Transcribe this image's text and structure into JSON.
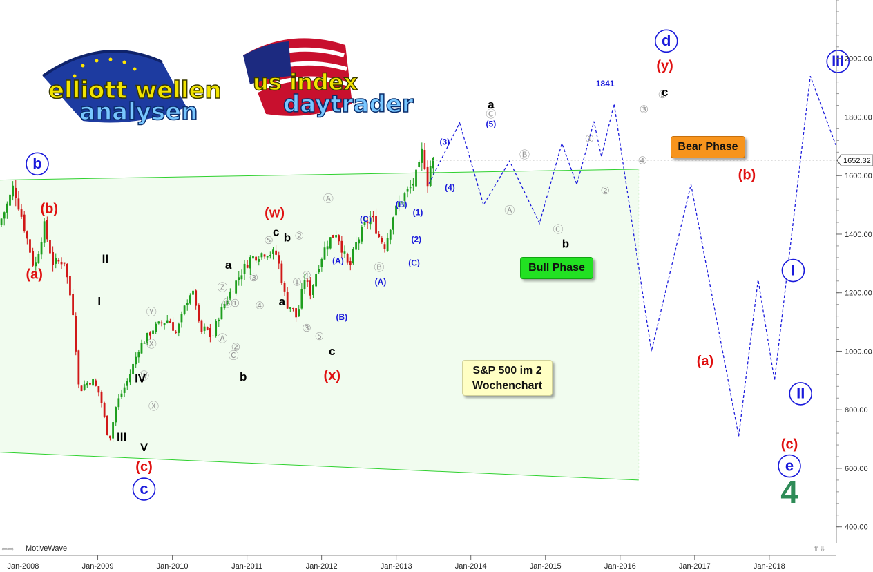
{
  "app": {
    "brand": "MotiveWave",
    "logos": [
      "elliott wellen analysen",
      "us index daytrader"
    ]
  },
  "notes": {
    "bear": "Bear Phase",
    "bull": "Bull Phase",
    "title_line1": "S&P 500 im 2",
    "title_line2": "Wochenchart",
    "level_1841": "1841"
  },
  "colors": {
    "blue_wave": "#1a1adb",
    "red_wave": "#e01010",
    "black_wave": "#000000",
    "gray_wave": "#9a9a9a",
    "green_wave": "#2e8b57",
    "candle_up": "#1e9e1e",
    "candle_down": "#d01818",
    "channel_fill": "#f1fcef",
    "channel_line": "#2fd12f",
    "bear_box": "#f7941d",
    "bull_box": "#22e122",
    "note_box": "#ffffc4"
  },
  "chart_data": {
    "type": "line",
    "title": "S&P 500 im 2 Wochenchart",
    "xlabel": "",
    "ylabel": "",
    "x_ticks": [
      "Jan-2008",
      "Jan-2009",
      "Jan-2010",
      "Jan-2011",
      "Jan-2012",
      "Jan-2013",
      "Jan-2014",
      "Jan-2015",
      "Jan-2016",
      "Jan-2017",
      "Jan-2018"
    ],
    "y_ticks": [
      "400.00",
      "600.00",
      "800.00",
      "1000.00",
      "1200.00",
      "1400.00",
      "1600.00",
      "1800.00",
      "2000.00"
    ],
    "ylim": [
      345,
      2200
    ],
    "xlim": [
      2007.72,
      2018.92
    ],
    "last_price": "1652.32",
    "grid": false,
    "price_anchors": [
      [
        2007.72,
        1430
      ],
      [
        2007.85,
        1510
      ],
      [
        2007.92,
        1565
      ],
      [
        2008.05,
        1440
      ],
      [
        2008.2,
        1280
      ],
      [
        2008.33,
        1430
      ],
      [
        2008.45,
        1300
      ],
      [
        2008.6,
        1310
      ],
      [
        2008.72,
        1130
      ],
      [
        2008.8,
        860
      ],
      [
        2008.88,
        890
      ],
      [
        2008.98,
        900
      ],
      [
        2009.08,
        850
      ],
      [
        2009.2,
        690
      ],
      [
        2009.3,
        820
      ],
      [
        2009.45,
        900
      ],
      [
        2009.6,
        1010
      ],
      [
        2009.8,
        1080
      ],
      [
        2010.0,
        1110
      ],
      [
        2010.1,
        1060
      ],
      [
        2010.28,
        1200
      ],
      [
        2010.35,
        1190
      ],
      [
        2010.42,
        1060
      ],
      [
        2010.5,
        1080
      ],
      [
        2010.58,
        1040
      ],
      [
        2010.65,
        1110
      ],
      [
        2010.8,
        1190
      ],
      [
        2010.95,
        1260
      ],
      [
        2011.1,
        1320
      ],
      [
        2011.3,
        1340
      ],
      [
        2011.45,
        1330
      ],
      [
        2011.58,
        1160
      ],
      [
        2011.65,
        1150
      ],
      [
        2011.72,
        1110
      ],
      [
        2011.82,
        1250
      ],
      [
        2011.9,
        1200
      ],
      [
        2012.0,
        1290
      ],
      [
        2012.12,
        1370
      ],
      [
        2012.25,
        1410
      ],
      [
        2012.35,
        1330
      ],
      [
        2012.42,
        1280
      ],
      [
        2012.5,
        1360
      ],
      [
        2012.65,
        1440
      ],
      [
        2012.72,
        1460
      ],
      [
        2012.82,
        1390
      ],
      [
        2012.9,
        1360
      ],
      [
        2013.0,
        1460
      ],
      [
        2013.12,
        1520
      ],
      [
        2013.25,
        1560
      ],
      [
        2013.35,
        1620
      ],
      [
        2013.4,
        1690
      ],
      [
        2013.47,
        1580
      ],
      [
        2013.52,
        1650
      ]
    ],
    "projection_blue": [
      [
        2013.47,
        1573
      ],
      [
        2013.88,
        1780
      ],
      [
        2014.2,
        1500
      ],
      [
        2014.55,
        1650
      ],
      [
        2014.95,
        1437
      ],
      [
        2015.25,
        1710
      ],
      [
        2015.45,
        1570
      ],
      [
        2015.68,
        1785
      ],
      [
        2015.78,
        1665
      ],
      [
        2015.95,
        1845
      ],
      [
        2016.45,
        1000
      ],
      [
        2016.98,
        1570
      ],
      [
        2017.62,
        710
      ],
      [
        2017.88,
        1245
      ],
      [
        2018.1,
        900
      ],
      [
        2018.58,
        1940
      ],
      [
        2018.92,
        1705
      ]
    ],
    "channel": {
      "upper": [
        [
          2007.72,
          1585
        ],
        [
          2016.28,
          1622
        ]
      ],
      "lower": [
        [
          2007.72,
          655
        ],
        [
          2016.28,
          560
        ]
      ],
      "fill_bottom": [
        [
          2007.72,
          655
        ],
        [
          2016.28,
          560
        ]
      ]
    },
    "labels": [
      {
        "text": "b",
        "x": 2008.22,
        "y": 1640,
        "color": "blue",
        "style": "circle"
      },
      {
        "text": "(b)",
        "x": 2008.38,
        "y": 1484,
        "color": "red",
        "style": "plain"
      },
      {
        "text": "(a)",
        "x": 2008.18,
        "y": 1260,
        "color": "red",
        "style": "plain"
      },
      {
        "text": "II",
        "x": 2009.13,
        "y": 1314,
        "color": "black",
        "style": "plain"
      },
      {
        "text": "I",
        "x": 2009.05,
        "y": 1169,
        "color": "black",
        "style": "plain"
      },
      {
        "text": "IV",
        "x": 2009.6,
        "y": 904,
        "color": "black",
        "style": "plain"
      },
      {
        "text": "III",
        "x": 2009.35,
        "y": 705,
        "color": "black",
        "style": "plain"
      },
      {
        "text": "V",
        "x": 2009.65,
        "y": 670,
        "color": "black",
        "style": "plain"
      },
      {
        "text": "(c)",
        "x": 2009.65,
        "y": 603,
        "color": "red",
        "style": "plain"
      },
      {
        "text": "c",
        "x": 2009.65,
        "y": 529,
        "color": "blue",
        "style": "circle"
      },
      {
        "text": "(w)",
        "x": 2011.4,
        "y": 1470,
        "color": "red",
        "style": "plain"
      },
      {
        "text": "c",
        "x": 2011.42,
        "y": 1405,
        "color": "black",
        "style": "plain"
      },
      {
        "text": "b",
        "x": 2011.57,
        "y": 1386,
        "color": "black",
        "style": "plain"
      },
      {
        "text": "a",
        "x": 2010.78,
        "y": 1293,
        "color": "black",
        "style": "plain"
      },
      {
        "text": "a",
        "x": 2011.5,
        "y": 1167,
        "color": "black",
        "style": "plain"
      },
      {
        "text": "b",
        "x": 2010.98,
        "y": 910,
        "color": "black",
        "style": "plain"
      },
      {
        "text": "c",
        "x": 2012.17,
        "y": 998,
        "color": "black",
        "style": "plain"
      },
      {
        "text": "(x)",
        "x": 2012.17,
        "y": 915,
        "color": "red",
        "style": "plain"
      },
      {
        "text": "(A)",
        "x": 2012.25,
        "y": 1307,
        "color": "blue",
        "style": "plain"
      },
      {
        "text": "(B)",
        "x": 2012.3,
        "y": 1115,
        "color": "blue",
        "style": "plain"
      },
      {
        "text": "(C)",
        "x": 2012.62,
        "y": 1450,
        "color": "blue",
        "style": "plain"
      },
      {
        "text": "(A)",
        "x": 2012.82,
        "y": 1235,
        "color": "blue",
        "style": "plain"
      },
      {
        "text": "(B)",
        "x": 2013.1,
        "y": 1500,
        "color": "blue",
        "style": "plain"
      },
      {
        "text": "(1)",
        "x": 2013.32,
        "y": 1472,
        "color": "blue",
        "style": "plain"
      },
      {
        "text": "(2)",
        "x": 2013.3,
        "y": 1380,
        "color": "blue",
        "style": "plain"
      },
      {
        "text": "(C)",
        "x": 2013.27,
        "y": 1300,
        "color": "blue",
        "style": "plain"
      },
      {
        "text": "(3)",
        "x": 2013.68,
        "y": 1713,
        "color": "blue",
        "style": "plain"
      },
      {
        "text": "(4)",
        "x": 2013.75,
        "y": 1557,
        "color": "blue",
        "style": "plain"
      },
      {
        "text": "a",
        "x": 2014.3,
        "y": 1840,
        "color": "black",
        "style": "plain"
      },
      {
        "text": "(5)",
        "x": 2014.3,
        "y": 1774,
        "color": "blue",
        "style": "plain"
      },
      {
        "text": "b",
        "x": 2015.3,
        "y": 1365,
        "color": "black",
        "style": "plain"
      },
      {
        "text": "1841",
        "x": 2015.83,
        "y": 1913,
        "color": "blue",
        "style": "plain"
      },
      {
        "text": "d",
        "x": 2016.65,
        "y": 2060,
        "color": "blue",
        "style": "circle"
      },
      {
        "text": "(y)",
        "x": 2016.63,
        "y": 1973,
        "color": "red",
        "style": "plain"
      },
      {
        "text": "c",
        "x": 2016.63,
        "y": 1883,
        "color": "black",
        "style": "plain"
      },
      {
        "text": "(b)",
        "x": 2017.73,
        "y": 1600,
        "color": "red",
        "style": "plain"
      },
      {
        "text": "(a)",
        "x": 2017.17,
        "y": 964,
        "color": "red",
        "style": "plain"
      },
      {
        "text": "I",
        "x": 2018.35,
        "y": 1276,
        "color": "blue",
        "style": "circle"
      },
      {
        "text": "II",
        "x": 2018.45,
        "y": 855,
        "color": "blue",
        "style": "circle"
      },
      {
        "text": "III",
        "x": 2018.95,
        "y": 1990,
        "color": "blue",
        "style": "circle"
      },
      {
        "text": "(c)",
        "x": 2018.3,
        "y": 680,
        "color": "red",
        "style": "plain"
      },
      {
        "text": "e",
        "x": 2018.3,
        "y": 608,
        "color": "blue",
        "style": "circle"
      },
      {
        "text": "4",
        "x": 2018.3,
        "y": 510,
        "color": "green",
        "style": "big"
      }
    ],
    "gray_markers": [
      {
        "t": "Ⓩ",
        "x": 2010.7,
        "y": 1217
      },
      {
        "t": "Ⓑ",
        "x": 2010.77,
        "y": 1163
      },
      {
        "t": "①",
        "x": 2010.87,
        "y": 1163
      },
      {
        "t": "Ⓨ",
        "x": 2009.75,
        "y": 1133
      },
      {
        "t": "Ⓐ",
        "x": 2010.7,
        "y": 1042
      },
      {
        "t": "②",
        "x": 2010.88,
        "y": 1013
      },
      {
        "t": "Ⓒ",
        "x": 2010.85,
        "y": 985
      },
      {
        "t": "Ⓧ",
        "x": 2009.75,
        "y": 1023
      },
      {
        "t": "Ⓦ",
        "x": 2009.65,
        "y": 915
      },
      {
        "t": "Ⓧ",
        "x": 2009.78,
        "y": 811
      },
      {
        "t": "③",
        "x": 2011.12,
        "y": 1250
      },
      {
        "t": "④",
        "x": 2011.2,
        "y": 1155
      },
      {
        "t": "⑤",
        "x": 2011.32,
        "y": 1377
      },
      {
        "t": "②",
        "x": 2011.73,
        "y": 1393
      },
      {
        "t": "①",
        "x": 2011.7,
        "y": 1235
      },
      {
        "t": "④",
        "x": 2011.83,
        "y": 1258
      },
      {
        "t": "③",
        "x": 2011.83,
        "y": 1078
      },
      {
        "t": "⑤",
        "x": 2012.0,
        "y": 1050
      },
      {
        "t": "Ⓐ",
        "x": 2012.12,
        "y": 1520
      },
      {
        "t": "Ⓑ",
        "x": 2012.8,
        "y": 1285
      },
      {
        "t": "Ⓒ",
        "x": 2014.3,
        "y": 1810
      },
      {
        "t": "Ⓐ",
        "x": 2014.55,
        "y": 1480
      },
      {
        "t": "Ⓑ",
        "x": 2014.75,
        "y": 1670
      },
      {
        "t": "Ⓒ",
        "x": 2015.2,
        "y": 1415
      },
      {
        "t": "①",
        "x": 2015.62,
        "y": 1725
      },
      {
        "t": "②",
        "x": 2015.83,
        "y": 1547
      },
      {
        "t": "③",
        "x": 2016.35,
        "y": 1825
      },
      {
        "t": "④",
        "x": 2016.33,
        "y": 1650
      },
      {
        "t": "⑤",
        "x": 2016.6,
        "y": 1875
      }
    ]
  }
}
